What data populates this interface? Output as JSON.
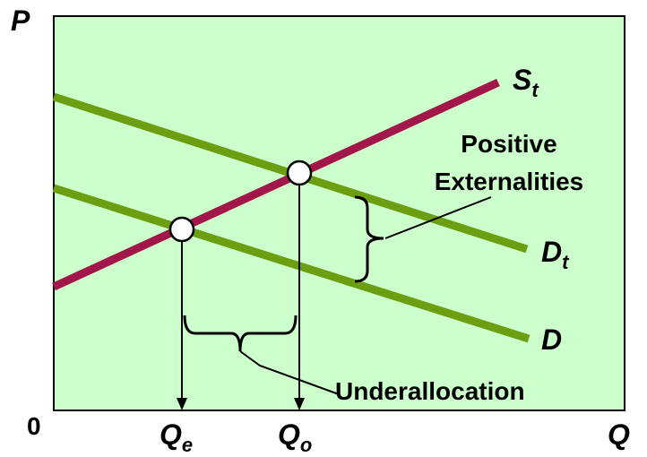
{
  "axes": {
    "y_label": "P",
    "x_label": "Q",
    "origin_label": "0"
  },
  "curves": {
    "supply": {
      "label": "S",
      "subscript": "t",
      "color": "#a3164a"
    },
    "social_demand": {
      "label": "D",
      "subscript": "t",
      "color": "#6b9e10"
    },
    "demand": {
      "label": "D",
      "color": "#6b9e10"
    }
  },
  "quantities": {
    "equilibrium": {
      "label": "Q",
      "subscript": "e"
    },
    "optimal": {
      "label": "Q",
      "subscript": "o"
    }
  },
  "annotations": {
    "externalities_line1": "Positive",
    "externalities_line2": "Externalities",
    "underallocation": "Underallocation"
  },
  "colors": {
    "plot_background": "#ccffcc",
    "supply_line": "#a3164a",
    "demand_lines": "#6b9e10"
  }
}
